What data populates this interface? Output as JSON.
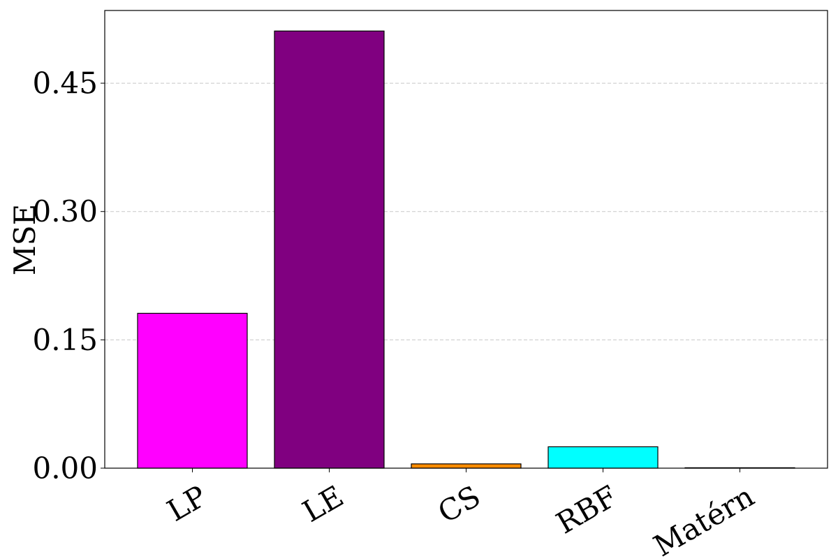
{
  "chart_data": {
    "type": "bar",
    "title": "",
    "xlabel": "",
    "ylabel": "MSE",
    "categories": [
      "LP",
      "LE",
      "CS",
      "RBF",
      "Matérn"
    ],
    "values": [
      0.181,
      0.511,
      0.005,
      0.025,
      0.0005
    ],
    "colors": [
      "#ff00ff",
      "#800080",
      "#ff8c00",
      "#00ffff",
      "#ffffff"
    ],
    "ylim": [
      0,
      0.535
    ],
    "yticks": [
      0.0,
      0.15,
      0.3,
      0.45
    ],
    "ytick_labels": [
      "0.00",
      "0.15",
      "0.30",
      "0.45"
    ],
    "grid": "y-dashed",
    "edge_color": "#000000"
  }
}
